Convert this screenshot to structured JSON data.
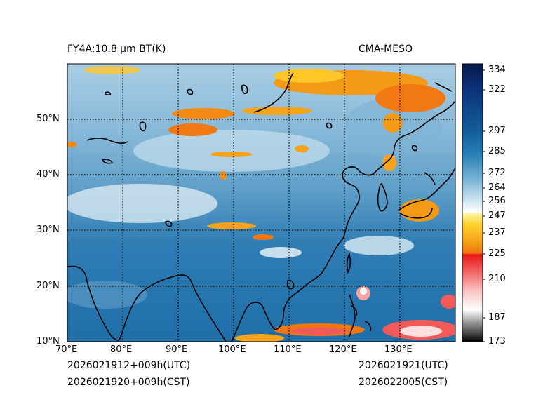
{
  "header": {
    "title_left": "FY4A:10.8 µm BT(K)",
    "title_right": "CMA-MESO"
  },
  "footer": {
    "init_utc": "2026021912+009h(UTC)",
    "init_cst": "2026021920+009h(CST)",
    "valid_utc": "2026021921(UTC)",
    "valid_cst": "2026022005(CST)"
  },
  "map": {
    "lon_labels": [
      "70°E",
      "80°E",
      "90°E",
      "100°E",
      "110°E",
      "120°E",
      "130°E"
    ],
    "lat_labels": [
      "50°N",
      "40°N",
      "30°N",
      "20°N",
      "10°N"
    ],
    "extent": {
      "lon_min": 70,
      "lon_max": 140,
      "lat_min": 10,
      "lat_max": 60
    }
  },
  "colorbar": {
    "ticks": [
      "334",
      "322",
      "297",
      "285",
      "272",
      "264",
      "256",
      "247",
      "237",
      "225",
      "210",
      "187",
      "173"
    ],
    "colors": {
      "warm_dark": "#08205a",
      "warm_mid": "#1a6a9e",
      "light": "#dcecf5",
      "orange": "#f07a10",
      "red": "#e8101a",
      "grey": "#888888"
    }
  }
}
